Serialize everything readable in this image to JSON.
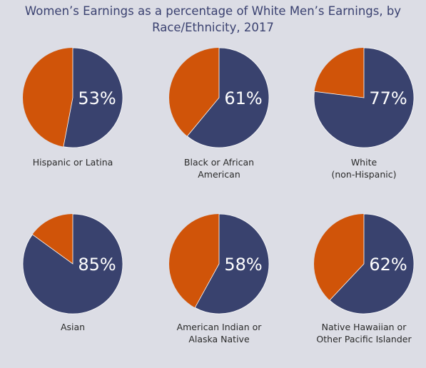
{
  "colors": {
    "background": "#dcdde5",
    "women_share": "#39426e",
    "remainder": "#d05409",
    "title": "#3a4170",
    "label": "#2a2a2a"
  },
  "chart_data": {
    "type": "pie",
    "title_lines": [
      "Women’s Earnings as a percentage of White Men’s Earnings, by",
      "Race/Ethnicity, 2017"
    ],
    "grid": "2 rows x 3 columns",
    "pies": [
      {
        "label_lines": [
          "Hispanic or Latina"
        ],
        "value": 53,
        "value_label": "53%"
      },
      {
        "label_lines": [
          "Black or African",
          "American"
        ],
        "value": 61,
        "value_label": "61%"
      },
      {
        "label_lines": [
          "White",
          "(non-Hispanic)"
        ],
        "value": 77,
        "value_label": "77%"
      },
      {
        "label_lines": [
          "Asian"
        ],
        "value": 85,
        "value_label": "85%"
      },
      {
        "label_lines": [
          "American Indian or",
          "Alaska Native"
        ],
        "value": 58,
        "value_label": "58%"
      },
      {
        "label_lines": [
          "Native Hawaiian or",
          "Other Pacific Islander"
        ],
        "value": 62,
        "value_label": "62%"
      }
    ]
  }
}
